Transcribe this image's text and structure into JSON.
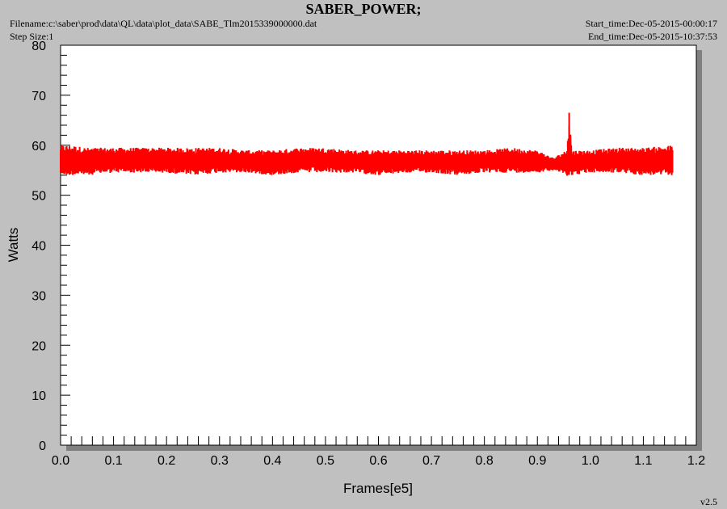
{
  "header": {
    "title": "SABER_POWER;",
    "filename": "Filename:c:\\saber\\prod\\data\\QL\\data\\plot_data\\SABE_Tlm2015339000000.dat",
    "step_size": "Step Size:1",
    "start_time": "Start_time:Dec-05-2015-00:00:17",
    "end_time": "End_time:Dec-05-2015-10:37:53"
  },
  "version": "v2.5",
  "chart_data": {
    "type": "line",
    "title": "SABER_POWER;",
    "xlabel": "Frames[e5]",
    "ylabel": "Watts",
    "xlim": [
      0.0,
      1.2
    ],
    "ylim": [
      0,
      80
    ],
    "xticks": [
      "0.0",
      "0.1",
      "0.2",
      "0.3",
      "0.4",
      "0.5",
      "0.6",
      "0.7",
      "0.8",
      "0.9",
      "1.0",
      "1.1",
      "1.2"
    ],
    "yticks": [
      "0",
      "10",
      "20",
      "30",
      "40",
      "50",
      "60",
      "70",
      "80"
    ],
    "grid": false,
    "series": [
      {
        "color": "#ff0000",
        "x": [
          0.0,
          0.02,
          0.05,
          0.1,
          0.15,
          0.2,
          0.25,
          0.3,
          0.35,
          0.4,
          0.45,
          0.5,
          0.55,
          0.6,
          0.65,
          0.7,
          0.75,
          0.8,
          0.85,
          0.9,
          0.93,
          0.955,
          0.96,
          0.965,
          1.0,
          1.05,
          1.1,
          1.155
        ],
        "y_low": [
          54,
          54,
          54,
          54.5,
          54.5,
          54.5,
          54,
          54.5,
          54.5,
          54,
          54.5,
          54.5,
          54.5,
          54,
          54.5,
          54.5,
          54,
          54.5,
          54.5,
          54.5,
          55,
          54,
          53.5,
          54,
          54.5,
          54.5,
          54,
          54
        ],
        "y_high": [
          60,
          60,
          59.5,
          59.5,
          59.5,
          59.5,
          59.5,
          59.5,
          59,
          59,
          59.5,
          59.5,
          59,
          59,
          59,
          59,
          59,
          59,
          59.5,
          59,
          57.5,
          59,
          66.5,
          59,
          59,
          59.5,
          59.5,
          60
        ],
        "y_mean": [
          57,
          57,
          56.8,
          57,
          57,
          57,
          56.7,
          57,
          56.8,
          56.5,
          57,
          57,
          56.8,
          56.5,
          56.7,
          56.8,
          56.5,
          56.8,
          57,
          56.8,
          56.2,
          56.5,
          57,
          56.5,
          56.8,
          57,
          56.8,
          57
        ]
      }
    ]
  }
}
